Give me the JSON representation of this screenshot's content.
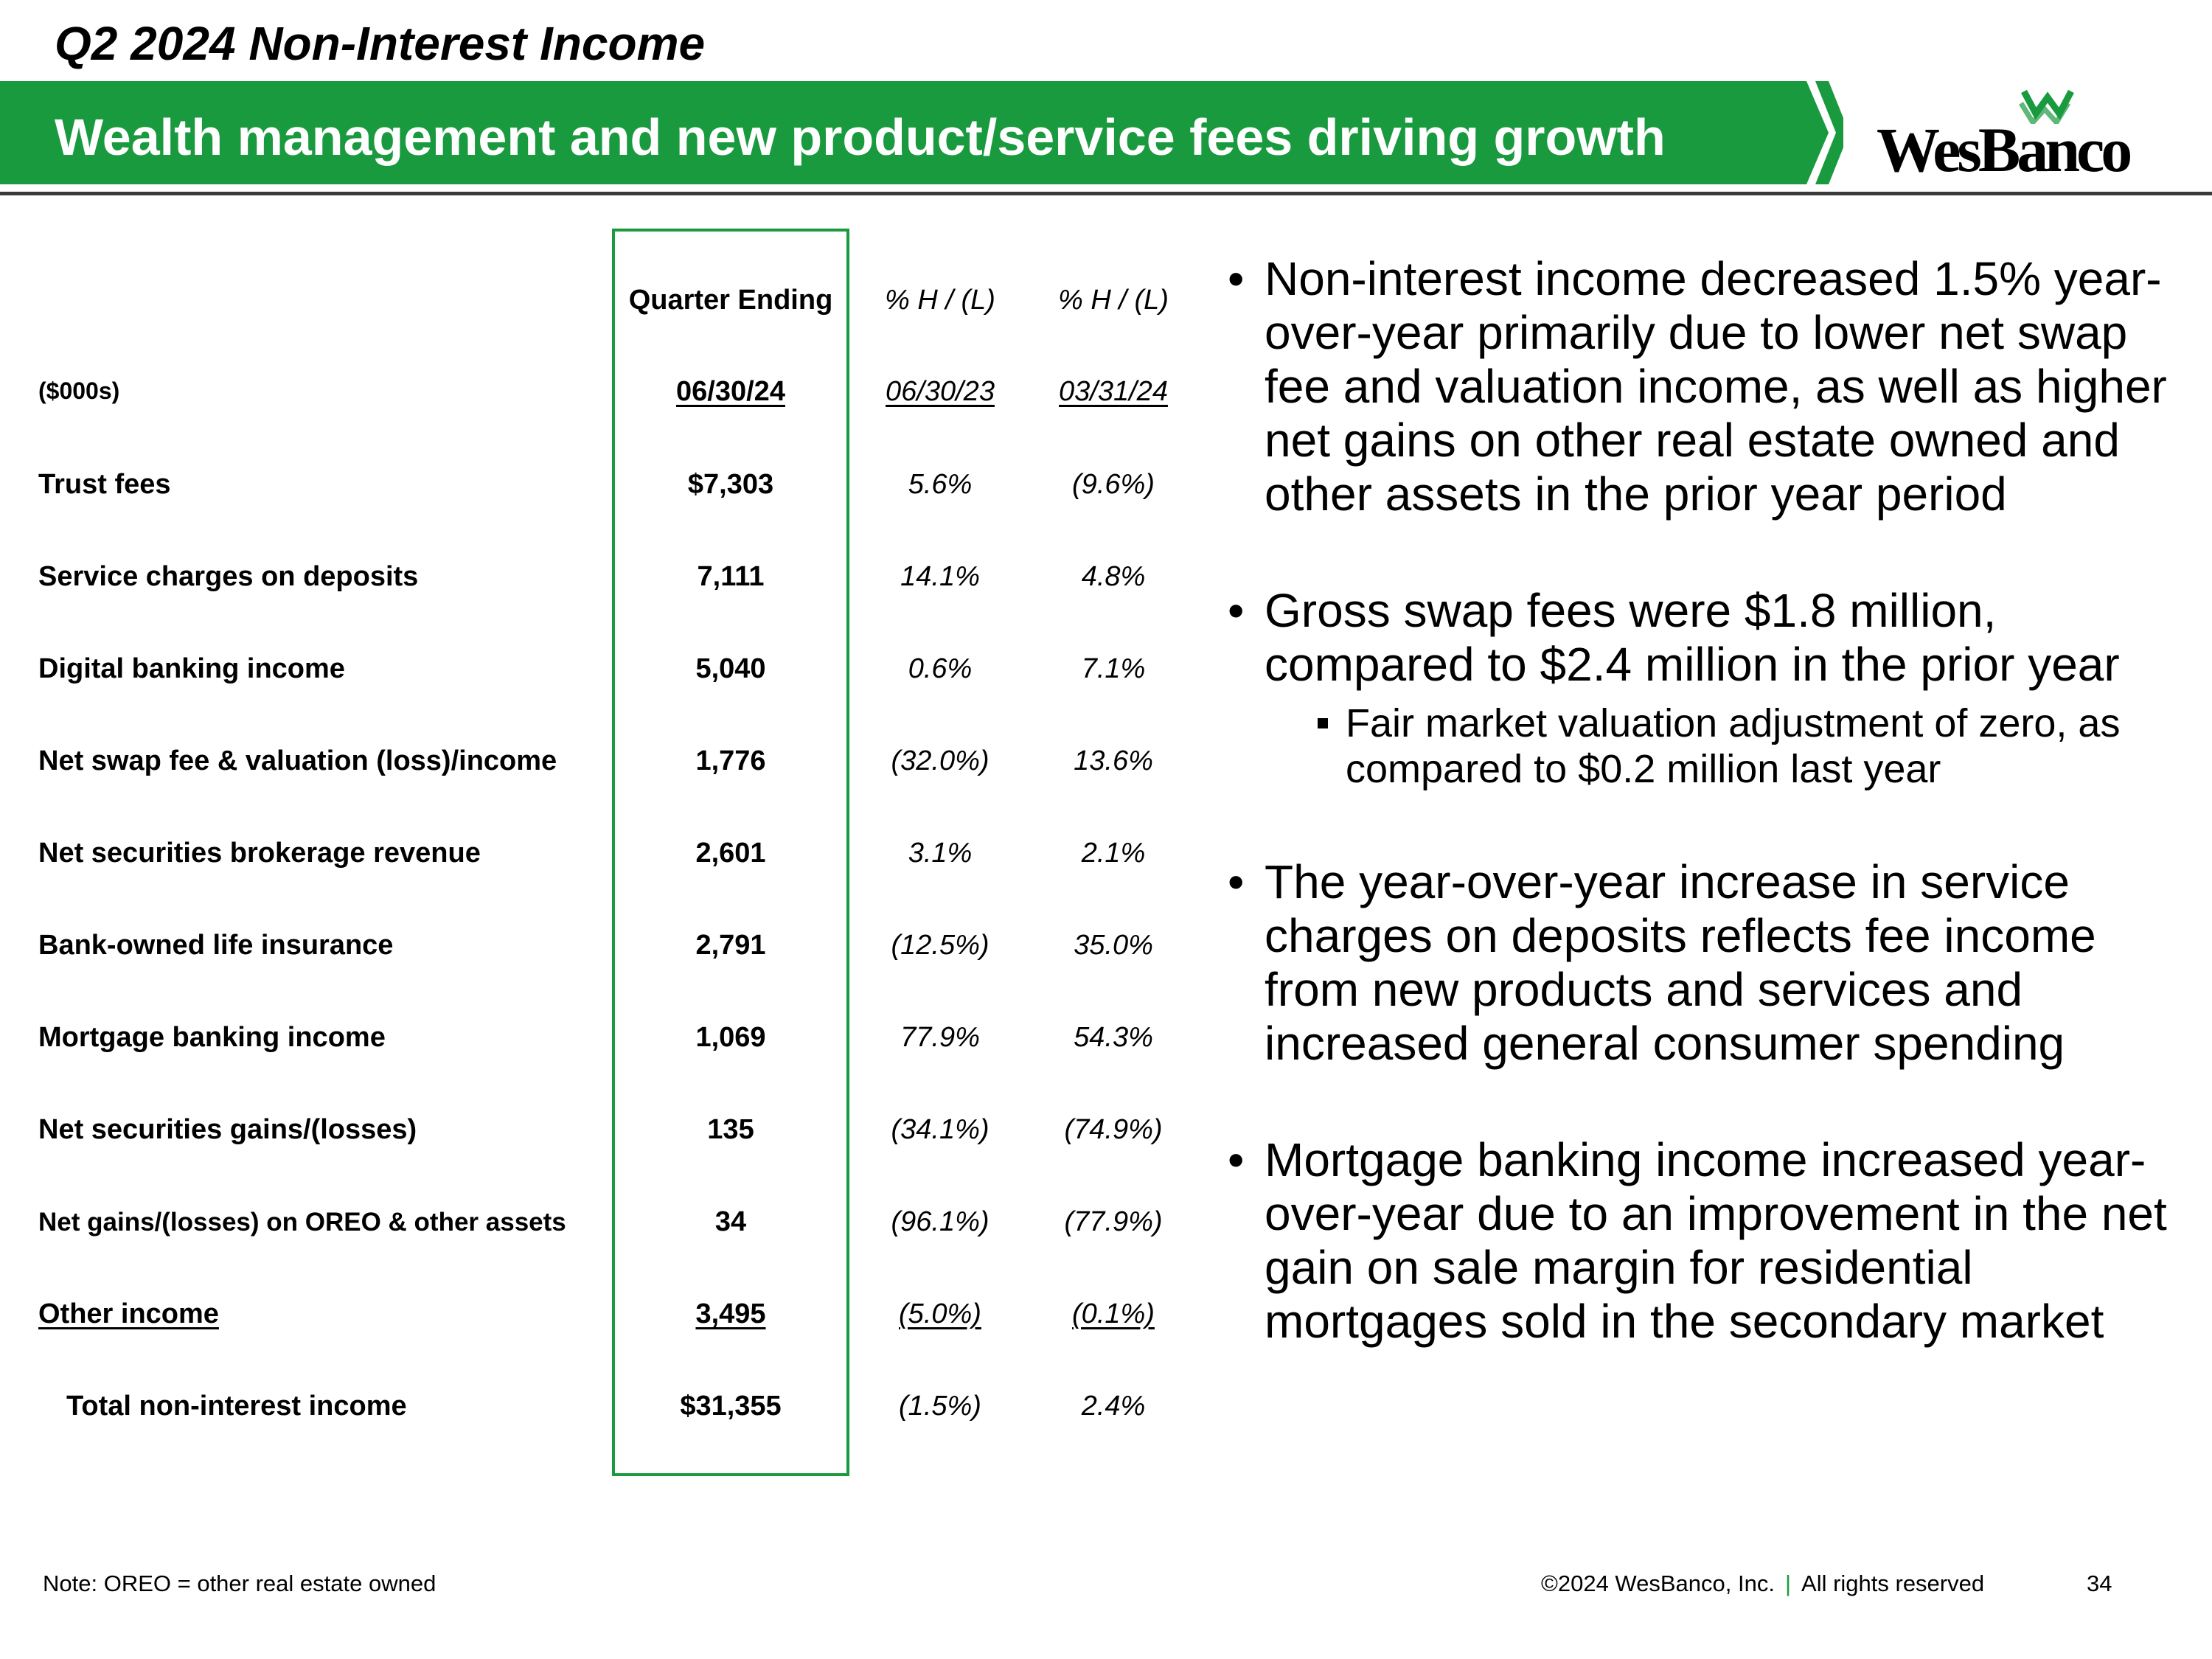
{
  "header": {
    "slide_title": "Q2 2024 Non-Interest Income",
    "banner_text": "Wealth management and new product/service fees driving growth",
    "logo_text": "WesBanco",
    "brand_color": "#1a9a3e"
  },
  "table": {
    "col_headers": [
      "Quarter Ending",
      "% H / (L)",
      "% H / (L)"
    ],
    "units_label": "($000s)",
    "dates": [
      "06/30/24",
      "06/30/23",
      "03/31/24"
    ],
    "rows": [
      {
        "label": "Trust fees",
        "value": "$7,303",
        "yoy": "5.6%",
        "qoq": "(9.6%)"
      },
      {
        "label": "Service charges on deposits",
        "value": "7,111",
        "yoy": "14.1%",
        "qoq": "4.8%"
      },
      {
        "label": "Digital banking income",
        "value": "5,040",
        "yoy": "0.6%",
        "qoq": "7.1%"
      },
      {
        "label": "Net swap fee & valuation (loss)/income",
        "value": "1,776",
        "yoy": "(32.0%)",
        "qoq": "13.6%"
      },
      {
        "label": "Net securities brokerage revenue",
        "value": "2,601",
        "yoy": "3.1%",
        "qoq": "2.1%"
      },
      {
        "label": "Bank-owned life insurance",
        "value": "2,791",
        "yoy": "(12.5%)",
        "qoq": "35.0%"
      },
      {
        "label": "Mortgage banking income",
        "value": "1,069",
        "yoy": "77.9%",
        "qoq": "54.3%"
      },
      {
        "label": "Net securities gains/(losses)",
        "value": "135",
        "yoy": "(34.1%)",
        "qoq": "(74.9%)"
      },
      {
        "label": "Net gains/(losses) on OREO & other assets",
        "value": "34",
        "yoy": "(96.1%)",
        "qoq": "(77.9%)"
      },
      {
        "label": "Other income",
        "value": "3,495",
        "yoy": "(5.0%)",
        "qoq": "(0.1%)"
      },
      {
        "label": "Total non-interest income",
        "value": "$31,355",
        "yoy": "(1.5%)",
        "qoq": "2.4%"
      }
    ]
  },
  "bullets": [
    {
      "text": "Non-interest income decreased 1.5% year-over-year primarily due to lower net swap fee and valuation income, as well as higher net gains on other real estate owned and other assets in the prior year period"
    },
    {
      "text": "Gross swap fees were $1.8 million, compared to $2.4 million in the prior year",
      "sub": "Fair market valuation adjustment of zero, as compared to $0.2 million last year"
    },
    {
      "text": "The year-over-year increase in service charges on deposits reflects fee income from new products and services and increased general consumer spending"
    },
    {
      "text": "Mortgage banking income increased year-over-year due to an improvement in the net gain on sale margin for residential mortgages sold in the secondary market"
    }
  ],
  "bullet_glyph": "•",
  "footer": {
    "note": "Note: OREO = other real estate owned",
    "copyright": "©2024 WesBanco, Inc.",
    "separator": "|",
    "rights": "All rights reserved",
    "page_number": "34"
  }
}
